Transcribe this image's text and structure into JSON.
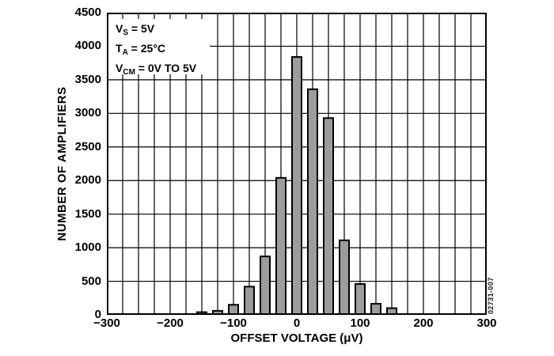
{
  "figure_id": "02731-007",
  "conditions": [
    {
      "base": "V",
      "sub": "S",
      "rest": " = 5V"
    },
    {
      "base": "T",
      "sub": "A",
      "rest": " = 25°C"
    },
    {
      "base": "V",
      "sub": "CM",
      "rest": " = 0V TO 5V"
    }
  ],
  "chart_data": {
    "type": "bar",
    "title": "",
    "xlabel": "OFFSET VOLTAGE (μV)",
    "ylabel": "NUMBER OF AMPLIFIERS",
    "xlim": [
      -300,
      300
    ],
    "ylim": [
      0,
      4500
    ],
    "x_tick_values": [
      -300,
      -200,
      -100,
      0,
      100,
      200,
      300
    ],
    "x_tick_labels": [
      "−300",
      "−200",
      "−100",
      "0",
      "100",
      "200",
      "300"
    ],
    "y_tick_values": [
      0,
      500,
      1000,
      1500,
      2000,
      2500,
      3000,
      3500,
      4000,
      4500
    ],
    "x_grid_step": 25,
    "y_grid_step": 500,
    "grid": true,
    "legend": false,
    "bar_width_uV": 15,
    "categories": [
      -150,
      -125,
      -100,
      -75,
      -50,
      -25,
      0,
      25,
      50,
      75,
      100,
      125,
      150
    ],
    "values": [
      40,
      60,
      150,
      420,
      870,
      2040,
      3840,
      3360,
      2930,
      1110,
      460,
      165,
      100
    ],
    "colors": {
      "bar_fill": "#9c9c9c",
      "bar_edge": "#000000",
      "grid": "#000000",
      "background": "#ffffff",
      "text": "#000000"
    }
  }
}
